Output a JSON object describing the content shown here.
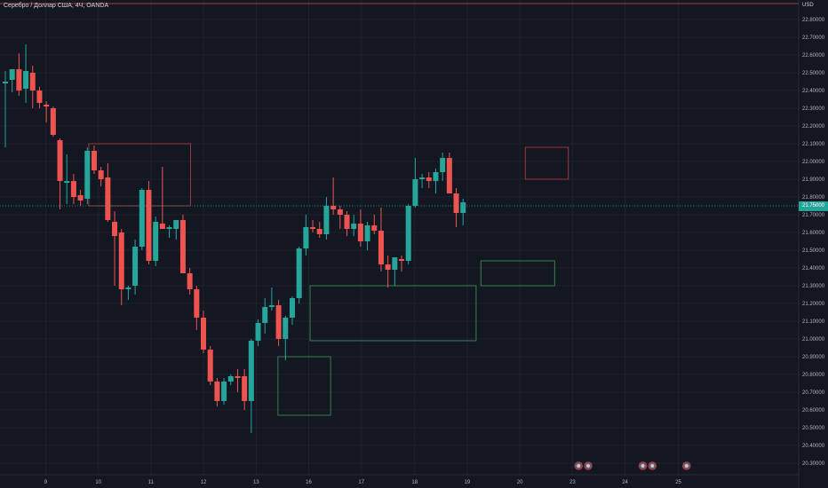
{
  "header": {
    "title": "Серебро / Доллар США, 4Ч, OANDA",
    "currency": "USD"
  },
  "colors": {
    "background": "#131722",
    "up": "#26a69a",
    "down": "#ef5350",
    "grid": "#1e222d",
    "axis_text": "#b2b5be",
    "top_line": "#b2363f",
    "current_price": "#26a69a"
  },
  "chart_data": {
    "type": "candlestick",
    "title": "Серебро / Доллар США, 4Ч, OANDA",
    "currency": "USD",
    "ylim": [
      20.25,
      22.92
    ],
    "y_ticks": [
      "22.80000",
      "22.70000",
      "22.60000",
      "22.50000",
      "22.40000",
      "22.30000",
      "22.20000",
      "22.10000",
      "22.00000",
      "21.90000",
      "21.80000",
      "21.70000",
      "21.60000",
      "21.50000",
      "21.40000",
      "21.30000",
      "21.20000",
      "21.10000",
      "21.00000",
      "20.90000",
      "20.80000",
      "20.70000",
      "20.60000",
      "20.50000",
      "20.40000",
      "20.30000"
    ],
    "x_ticks": [
      {
        "label": "9",
        "idx": 6.3
      },
      {
        "label": "10",
        "idx": 14.0
      },
      {
        "label": "11",
        "idx": 21.7
      },
      {
        "label": "12",
        "idx": 29.4
      },
      {
        "label": "13",
        "idx": 37.1
      },
      {
        "label": "16",
        "idx": 44.8
      },
      {
        "label": "17",
        "idx": 52.5
      },
      {
        "label": "18",
        "idx": 60.3
      },
      {
        "label": "19",
        "idx": 68.0
      },
      {
        "label": "20",
        "idx": 75.7
      },
      {
        "label": "23",
        "idx": 83.4
      },
      {
        "label": "24",
        "idx": 91.1
      },
      {
        "label": "25",
        "idx": 98.9
      }
    ],
    "current_price": "21.75000",
    "candles": [
      {
        "o": 22.44,
        "h": 22.51,
        "l": 22.08,
        "c": 22.45
      },
      {
        "o": 22.46,
        "h": 22.5,
        "l": 22.39,
        "c": 22.52
      },
      {
        "o": 22.52,
        "h": 22.61,
        "l": 22.37,
        "c": 22.4
      },
      {
        "o": 22.41,
        "h": 22.66,
        "l": 22.33,
        "c": 22.51
      },
      {
        "o": 22.5,
        "h": 22.54,
        "l": 22.3,
        "c": 22.4
      },
      {
        "o": 22.4,
        "h": 22.42,
        "l": 22.3,
        "c": 22.33
      },
      {
        "o": 22.32,
        "h": 22.34,
        "l": 22.22,
        "c": 22.31
      },
      {
        "o": 22.3,
        "h": 22.31,
        "l": 22.14,
        "c": 22.15
      },
      {
        "o": 22.12,
        "h": 22.13,
        "l": 21.73,
        "c": 21.89
      },
      {
        "o": 21.88,
        "h": 22.04,
        "l": 21.76,
        "c": 21.89
      },
      {
        "o": 21.89,
        "h": 21.93,
        "l": 21.76,
        "c": 21.8
      },
      {
        "o": 21.81,
        "h": 21.84,
        "l": 21.75,
        "c": 21.78
      },
      {
        "o": 21.79,
        "h": 22.08,
        "l": 21.76,
        "c": 22.06
      },
      {
        "o": 22.06,
        "h": 22.09,
        "l": 21.93,
        "c": 21.95
      },
      {
        "o": 21.95,
        "h": 21.97,
        "l": 21.86,
        "c": 21.9
      },
      {
        "o": 21.91,
        "h": 21.99,
        "l": 21.66,
        "c": 21.67
      },
      {
        "o": 21.66,
        "h": 21.72,
        "l": 21.3,
        "c": 21.58
      },
      {
        "o": 21.6,
        "h": 21.62,
        "l": 21.19,
        "c": 21.28
      },
      {
        "o": 21.28,
        "h": 21.3,
        "l": 21.22,
        "c": 21.29
      },
      {
        "o": 21.3,
        "h": 21.56,
        "l": 21.25,
        "c": 21.52
      },
      {
        "o": 21.52,
        "h": 21.85,
        "l": 21.5,
        "c": 21.84
      },
      {
        "o": 21.84,
        "h": 21.89,
        "l": 21.42,
        "c": 21.44
      },
      {
        "o": 21.44,
        "h": 21.69,
        "l": 21.41,
        "c": 21.66
      },
      {
        "o": 21.65,
        "h": 21.97,
        "l": 21.62,
        "c": 21.62
      },
      {
        "o": 21.62,
        "h": 21.64,
        "l": 21.57,
        "c": 21.63
      },
      {
        "o": 21.62,
        "h": 21.65,
        "l": 21.56,
        "c": 21.67
      },
      {
        "o": 21.67,
        "h": 21.7,
        "l": 21.37,
        "c": 21.37
      },
      {
        "o": 21.37,
        "h": 21.4,
        "l": 21.25,
        "c": 21.28
      },
      {
        "o": 21.28,
        "h": 21.3,
        "l": 21.05,
        "c": 21.12
      },
      {
        "o": 21.12,
        "h": 21.16,
        "l": 20.92,
        "c": 20.94
      },
      {
        "o": 20.94,
        "h": 20.96,
        "l": 20.74,
        "c": 20.76
      },
      {
        "o": 20.76,
        "h": 20.78,
        "l": 20.62,
        "c": 20.65
      },
      {
        "o": 20.65,
        "h": 20.78,
        "l": 20.63,
        "c": 20.76
      },
      {
        "o": 20.76,
        "h": 20.8,
        "l": 20.74,
        "c": 20.79
      },
      {
        "o": 20.79,
        "h": 20.83,
        "l": 20.7,
        "c": 20.78
      },
      {
        "o": 20.79,
        "h": 20.83,
        "l": 20.6,
        "c": 20.65
      },
      {
        "o": 20.65,
        "h": 21.0,
        "l": 20.47,
        "c": 20.99
      },
      {
        "o": 20.99,
        "h": 21.11,
        "l": 20.96,
        "c": 21.09
      },
      {
        "o": 21.09,
        "h": 21.23,
        "l": 21.03,
        "c": 21.18
      },
      {
        "o": 21.18,
        "h": 21.29,
        "l": 21.16,
        "c": 21.19
      },
      {
        "o": 21.19,
        "h": 21.22,
        "l": 20.96,
        "c": 21.0
      },
      {
        "o": 21.0,
        "h": 21.13,
        "l": 20.88,
        "c": 21.12
      },
      {
        "o": 21.12,
        "h": 21.24,
        "l": 21.08,
        "c": 21.23
      },
      {
        "o": 21.23,
        "h": 21.52,
        "l": 21.2,
        "c": 21.51
      },
      {
        "o": 21.51,
        "h": 21.7,
        "l": 21.47,
        "c": 21.63
      },
      {
        "o": 21.63,
        "h": 21.67,
        "l": 21.6,
        "c": 21.62
      },
      {
        "o": 21.62,
        "h": 21.66,
        "l": 21.57,
        "c": 21.59
      },
      {
        "o": 21.59,
        "h": 21.8,
        "l": 21.56,
        "c": 21.75
      },
      {
        "o": 21.75,
        "h": 21.91,
        "l": 21.7,
        "c": 21.73
      },
      {
        "o": 21.73,
        "h": 21.75,
        "l": 21.62,
        "c": 21.7
      },
      {
        "o": 21.7,
        "h": 21.72,
        "l": 21.58,
        "c": 21.62
      },
      {
        "o": 21.62,
        "h": 21.7,
        "l": 21.58,
        "c": 21.65
      },
      {
        "o": 21.65,
        "h": 21.73,
        "l": 21.52,
        "c": 21.55
      },
      {
        "o": 21.55,
        "h": 21.66,
        "l": 21.5,
        "c": 21.64
      },
      {
        "o": 21.64,
        "h": 21.7,
        "l": 21.59,
        "c": 21.61
      },
      {
        "o": 21.61,
        "h": 21.74,
        "l": 21.38,
        "c": 21.42
      },
      {
        "o": 21.42,
        "h": 21.47,
        "l": 21.29,
        "c": 21.39
      },
      {
        "o": 21.39,
        "h": 21.46,
        "l": 21.3,
        "c": 21.46
      },
      {
        "o": 21.45,
        "h": 21.47,
        "l": 21.38,
        "c": 21.44
      },
      {
        "o": 21.44,
        "h": 21.76,
        "l": 21.42,
        "c": 21.75
      },
      {
        "o": 21.75,
        "h": 22.02,
        "l": 21.74,
        "c": 21.9
      },
      {
        "o": 21.9,
        "h": 21.93,
        "l": 21.85,
        "c": 21.91
      },
      {
        "o": 21.91,
        "h": 21.94,
        "l": 21.85,
        "c": 21.89
      },
      {
        "o": 21.89,
        "h": 21.96,
        "l": 21.82,
        "c": 21.94
      },
      {
        "o": 21.94,
        "h": 22.05,
        "l": 21.89,
        "c": 22.02
      },
      {
        "o": 22.02,
        "h": 22.05,
        "l": 21.82,
        "c": 21.82
      },
      {
        "o": 21.82,
        "h": 21.85,
        "l": 21.63,
        "c": 21.71
      },
      {
        "o": 21.71,
        "h": 21.79,
        "l": 21.64,
        "c": 21.77
      }
    ],
    "zones": [
      {
        "kind": "supply",
        "i1": 12.6,
        "i2": 27.5,
        "top": 22.1,
        "bottom": 21.75
      },
      {
        "kind": "demand",
        "i1": 40.3,
        "i2": 48.0,
        "top": 20.9,
        "bottom": 20.57
      },
      {
        "kind": "demand",
        "i1": 45.0,
        "i2": 69.3,
        "top": 21.3,
        "bottom": 20.99
      },
      {
        "kind": "demand",
        "i1": 70.0,
        "i2": 80.8,
        "top": 21.44,
        "bottom": 21.3
      },
      {
        "kind": "supply",
        "i1": 76.5,
        "i2": 82.8,
        "top": 22.08,
        "bottom": 21.9
      }
    ],
    "events": [
      {
        "idx": 84.3
      },
      {
        "idx": 85.7
      },
      {
        "idx": 93.7
      },
      {
        "idx": 95.1
      },
      {
        "idx": 100.1
      }
    ]
  }
}
